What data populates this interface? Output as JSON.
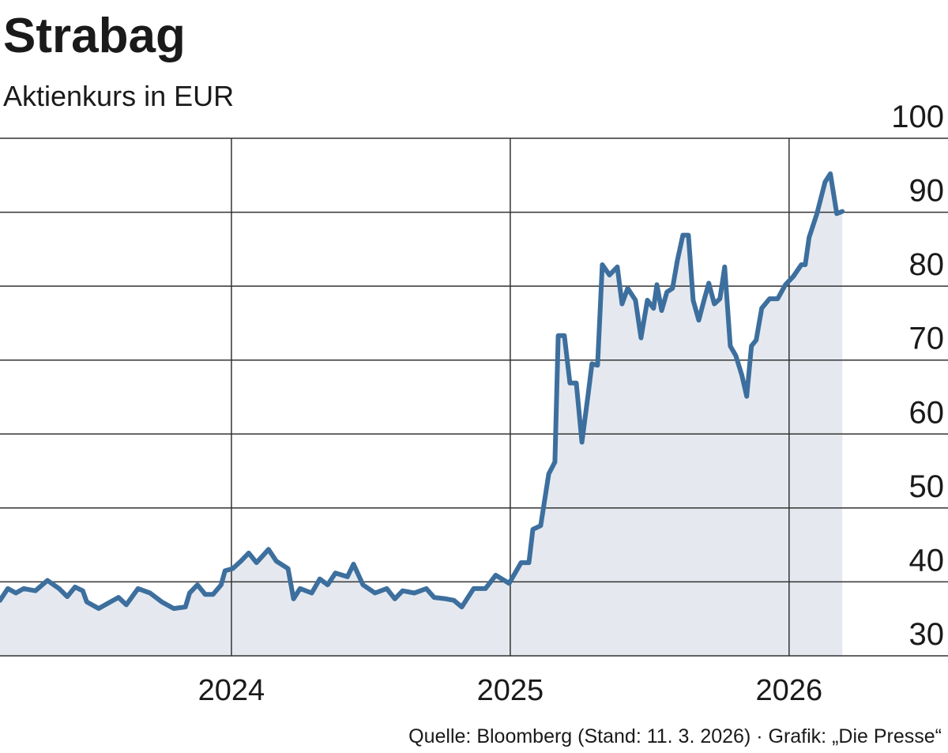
{
  "chart_data": {
    "type": "area-line",
    "title": "Strabag",
    "subtitle": "Aktienkurs in EUR",
    "source": "Quelle: Bloomberg (Stand: 11. 3. 2026) · Grafik: „Die Presse“",
    "color": "#3d6f9e",
    "fill": "#e5e9ef",
    "grid": true,
    "x": [
      2023.17,
      2023.198,
      2023.227,
      2023.255,
      2023.297,
      2023.34,
      2023.382,
      2023.411,
      2023.439,
      2023.467,
      2023.481,
      2023.524,
      2023.566,
      2023.595,
      2023.623,
      2023.665,
      2023.708,
      2023.75,
      2023.793,
      2023.835,
      2023.85,
      2023.878,
      2023.906,
      2023.934,
      2023.963,
      2023.977,
      2024.005,
      2024.034,
      2024.062,
      2024.09,
      2024.133,
      2024.161,
      2024.203,
      2024.223,
      2024.246,
      2024.288,
      2024.317,
      2024.345,
      2024.373,
      2024.416,
      2024.438,
      2024.472,
      2024.515,
      2024.557,
      2024.586,
      2024.614,
      2024.656,
      2024.699,
      2024.727,
      2024.77,
      2024.798,
      2024.826,
      2024.869,
      2024.911,
      2024.948,
      2024.996,
      2025.039,
      2025.067,
      2025.081,
      2025.109,
      2025.138,
      2025.16,
      2025.172,
      2025.194,
      2025.214,
      2025.237,
      2025.257,
      2025.279,
      2025.293,
      2025.313,
      2025.33,
      2025.356,
      2025.384,
      2025.401,
      2025.421,
      2025.449,
      2025.469,
      2025.492,
      2025.514,
      2025.526,
      2025.543,
      2025.562,
      2025.582,
      2025.599,
      2025.619,
      2025.639,
      2025.656,
      2025.676,
      2025.695,
      2025.712,
      2025.732,
      2025.752,
      2025.769,
      2025.789,
      2025.809,
      2025.831,
      2025.848,
      2025.865,
      2025.882,
      2025.902,
      2025.93,
      2025.959,
      2025.987,
      2026.015,
      2026.044,
      2026.058,
      2026.072,
      2026.1,
      2026.129,
      2026.148,
      2026.171,
      2026.191
    ],
    "values": [
      37.5,
      39.1,
      38.5,
      39.1,
      38.8,
      40.2,
      39.1,
      38.0,
      39.3,
      38.8,
      37.3,
      36.4,
      37.3,
      37.9,
      36.9,
      39.1,
      38.5,
      37.3,
      36.4,
      36.6,
      38.5,
      39.6,
      38.3,
      38.3,
      39.6,
      41.5,
      41.8,
      42.8,
      43.9,
      42.6,
      44.4,
      42.8,
      41.8,
      37.7,
      39.1,
      38.5,
      40.4,
      39.6,
      41.2,
      40.7,
      42.4,
      39.6,
      38.5,
      39.1,
      37.7,
      38.8,
      38.5,
      39.1,
      37.9,
      37.7,
      37.5,
      36.6,
      39.1,
      39.1,
      40.9,
      39.8,
      42.6,
      42.6,
      47.1,
      47.6,
      54.6,
      56.2,
      73.3,
      73.3,
      66.9,
      66.9,
      58.9,
      65.3,
      69.5,
      69.3,
      82.9,
      81.5,
      82.6,
      77.6,
      79.7,
      78.1,
      73.0,
      78.1,
      77.0,
      80.2,
      76.7,
      79.2,
      79.7,
      83.4,
      86.9,
      86.9,
      78.1,
      75.4,
      78.1,
      80.4,
      77.6,
      78.3,
      82.6,
      71.9,
      70.6,
      67.9,
      65.1,
      71.9,
      72.7,
      77.0,
      78.3,
      78.3,
      80.2,
      81.3,
      82.9,
      82.9,
      86.6,
      89.8,
      94.1,
      95.2,
      89.8,
      90.1
    ],
    "xlim": [
      2023.17,
      2026.57
    ],
    "xticks": [
      2024,
      2025,
      2026
    ],
    "ylim": [
      30,
      100
    ],
    "yticks": [
      30,
      40,
      50,
      60,
      70,
      80,
      90,
      100
    ]
  }
}
